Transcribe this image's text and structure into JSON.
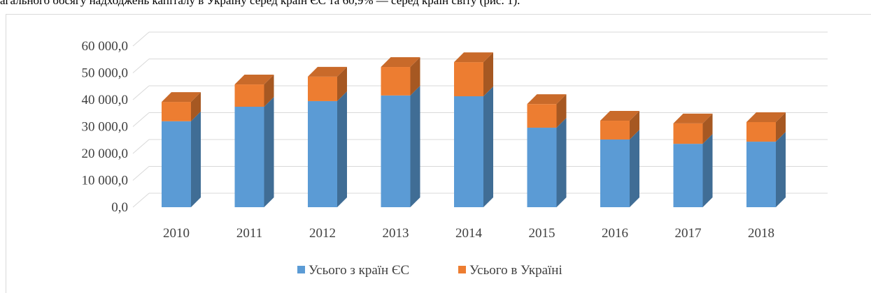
{
  "caption": "агального обсягу надходжень капіталу в Україну серед країн ЄС та 60,9% — серед країн світу (рис. 1).",
  "chart_data": {
    "type": "bar3d_stacked",
    "categories": [
      "2010",
      "2011",
      "2012",
      "2013",
      "2014",
      "2015",
      "2016",
      "2017",
      "2018"
    ],
    "series": [
      {
        "name": "Усього з країн ЄС",
        "color": "#5b9bd5",
        "values": [
          32000,
          37400,
          39500,
          41600,
          41300,
          29600,
          25200,
          23600,
          24400
        ]
      },
      {
        "name": "Усього в Україні",
        "color": "#ed7d31",
        "values": [
          7200,
          8300,
          9100,
          10600,
          12700,
          8800,
          7000,
          7600,
          7300
        ]
      }
    ],
    "ylim": [
      0,
      60000
    ],
    "yticks": [
      {
        "value": 0,
        "label": "0,0"
      },
      {
        "value": 10000,
        "label": "10 000,0"
      },
      {
        "value": 20000,
        "label": "20 000,0"
      },
      {
        "value": 30000,
        "label": "30 000,0"
      },
      {
        "value": 40000,
        "label": "40 000,0"
      },
      {
        "value": 50000,
        "label": "50 000,0"
      },
      {
        "value": 60000,
        "label": "60 000,0"
      }
    ],
    "grid": true,
    "legend": "bottom"
  }
}
